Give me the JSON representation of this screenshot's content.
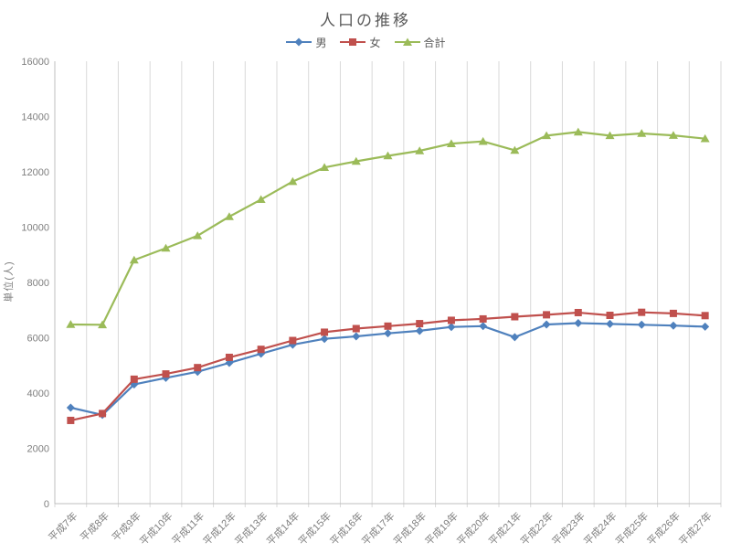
{
  "chart": {
    "title": "人口の推移"
  },
  "chart_data": {
    "type": "line",
    "title": "人口の推移",
    "xlabel": "",
    "ylabel": "単位(人)",
    "ylim": [
      0,
      16000
    ],
    "ytick_step": 2000,
    "yticks": [
      "0",
      "2000",
      "4000",
      "6000",
      "8000",
      "10000",
      "12000",
      "14000",
      "16000"
    ],
    "grid": "vertical-only",
    "legend_position": "top-center",
    "categories": [
      "平成7年",
      "平成8年",
      "平成9年",
      "平成10年",
      "平成11年",
      "平成12年",
      "平成13年",
      "平成14年",
      "平成15年",
      "平成16年",
      "平成17年",
      "平成18年",
      "平成19年",
      "平成20年",
      "平成21年",
      "平成22年",
      "平成23年",
      "平成24年",
      "平成25年",
      "平成26年",
      "平成27年"
    ],
    "series": [
      {
        "key": "male",
        "name": "男",
        "marker": "diamond",
        "color": "#4F81BD",
        "values": [
          3470,
          3210,
          4310,
          4550,
          4770,
          5090,
          5420,
          5750,
          5960,
          6050,
          6160,
          6250,
          6390,
          6420,
          6020,
          6480,
          6530,
          6500,
          6470,
          6440,
          6400
        ]
      },
      {
        "key": "female",
        "name": "女",
        "marker": "square",
        "color": "#C0504D",
        "values": [
          3010,
          3260,
          4500,
          4690,
          4920,
          5290,
          5580,
          5900,
          6200,
          6330,
          6420,
          6510,
          6630,
          6680,
          6760,
          6830,
          6910,
          6810,
          6920,
          6880,
          6800
        ]
      },
      {
        "key": "total",
        "name": "合計",
        "marker": "triangle",
        "color": "#9BBB59",
        "values": [
          6480,
          6470,
          8810,
          9240,
          9690,
          10380,
          11000,
          11650,
          12160,
          12380,
          12580,
          12760,
          13020,
          13100,
          12780,
          13310,
          13440,
          13310,
          13390,
          13320,
          13200
        ]
      }
    ],
    "colors": {
      "text": "#7F7F7F",
      "title_text": "#595959",
      "gridline": "#D9D9D9",
      "axis_line": "#BFBFBF"
    }
  }
}
